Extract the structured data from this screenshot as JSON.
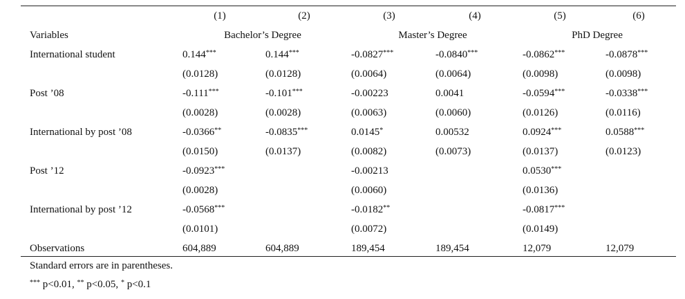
{
  "table": {
    "col_numbers": [
      "(1)",
      "(2)",
      "(3)",
      "(4)",
      "(5)",
      "(6)"
    ],
    "variables_header": "Variables",
    "groups": [
      "Bachelor’s Degree",
      "Master’s Degree",
      "PhD Degree"
    ],
    "rows": [
      {
        "label": "International student",
        "coef": [
          {
            "v": "0.144",
            "s": "***"
          },
          {
            "v": "0.144",
            "s": "***"
          },
          {
            "v": "-0.0827",
            "s": "***"
          },
          {
            "v": "-0.0840",
            "s": "***"
          },
          {
            "v": "-0.0862",
            "s": "***"
          },
          {
            "v": "-0.0878",
            "s": "***"
          }
        ],
        "se": [
          "(0.0128)",
          "(0.0128)",
          "(0.0064)",
          "(0.0064)",
          "(0.0098)",
          "(0.0098)"
        ]
      },
      {
        "label": "Post ’08",
        "coef": [
          {
            "v": "-0.111",
            "s": "***"
          },
          {
            "v": "-0.101",
            "s": "***"
          },
          {
            "v": "-0.00223",
            "s": ""
          },
          {
            "v": "0.0041",
            "s": ""
          },
          {
            "v": "-0.0594",
            "s": "***"
          },
          {
            "v": "-0.0338",
            "s": "***"
          }
        ],
        "se": [
          "(0.0028)",
          "(0.0028)",
          "(0.0063)",
          "(0.0060)",
          "(0.0126)",
          "(0.0116)"
        ]
      },
      {
        "label": "International by post ’08",
        "coef": [
          {
            "v": "-0.0366",
            "s": "**"
          },
          {
            "v": "-0.0835",
            "s": "***"
          },
          {
            "v": "0.0145",
            "s": "*"
          },
          {
            "v": "0.00532",
            "s": ""
          },
          {
            "v": "0.0924",
            "s": "***"
          },
          {
            "v": "0.0588",
            "s": "***"
          }
        ],
        "se": [
          "(0.0150)",
          "(0.0137)",
          "(0.0082)",
          "(0.0073)",
          "(0.0137)",
          "(0.0123)"
        ]
      },
      {
        "label": "Post ’12",
        "coef": [
          {
            "v": "-0.0923",
            "s": "***"
          },
          {
            "v": "",
            "s": ""
          },
          {
            "v": "-0.00213",
            "s": ""
          },
          {
            "v": "",
            "s": ""
          },
          {
            "v": "0.0530",
            "s": "***"
          },
          {
            "v": "",
            "s": ""
          }
        ],
        "se": [
          "(0.0028)",
          "",
          "(0.0060)",
          "",
          "(0.0136)",
          ""
        ]
      },
      {
        "label": "International by post ’12",
        "coef": [
          {
            "v": "-0.0568",
            "s": "***"
          },
          {
            "v": "",
            "s": ""
          },
          {
            "v": "-0.0182",
            "s": "**"
          },
          {
            "v": "",
            "s": ""
          },
          {
            "v": "-0.0817",
            "s": "***"
          },
          {
            "v": "",
            "s": ""
          }
        ],
        "se": [
          "(0.0101)",
          "",
          "(0.0072)",
          "",
          "(0.0149)",
          ""
        ]
      }
    ],
    "observations_label": "Observations",
    "observations": [
      "604,889",
      "604,889",
      "189,454",
      "189,454",
      "12,079",
      "12,079"
    ]
  },
  "notes": {
    "line1": "Standard errors are in parentheses.",
    "line2_parts": [
      {
        "stars": "***",
        "text": " p<0.01, "
      },
      {
        "stars": "**",
        "text": " p<0.05, "
      },
      {
        "stars": "*",
        "text": " p<0.1"
      }
    ]
  }
}
